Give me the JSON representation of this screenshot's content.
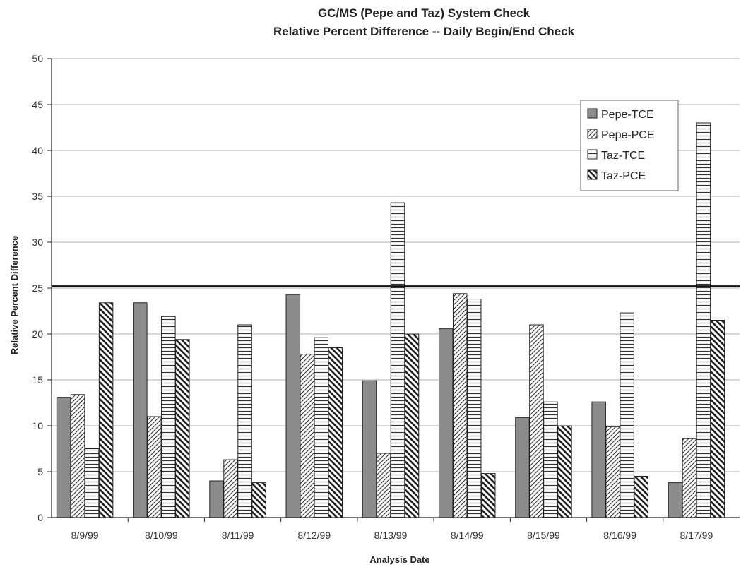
{
  "chart_data": {
    "type": "bar",
    "title": "GC/MS (Pepe and Taz) System Check",
    "subtitle": "Relative Percent Difference -- Daily Begin/End Check",
    "xlabel": "Analysis Date",
    "ylabel": "Relative Percent Difference",
    "ylim": [
      0,
      50
    ],
    "yticks": [
      0,
      5,
      10,
      15,
      20,
      25,
      30,
      35,
      40,
      45,
      50
    ],
    "grid": true,
    "legend_position": "top-right",
    "categories": [
      "8/9/99",
      "8/10/99",
      "8/11/99",
      "8/12/99",
      "8/13/99",
      "8/14/99",
      "8/15/99",
      "8/16/99",
      "8/17/99"
    ],
    "series": [
      {
        "name": "Pepe-TCE",
        "pattern": "solid",
        "values": [
          13.1,
          23.4,
          4.0,
          24.3,
          14.9,
          20.6,
          10.9,
          12.6,
          3.8
        ]
      },
      {
        "name": "Pepe-PCE",
        "pattern": "diagonal-up",
        "values": [
          13.4,
          11.0,
          6.3,
          17.8,
          7.0,
          24.4,
          21.0,
          9.9,
          8.6
        ]
      },
      {
        "name": "Taz-TCE",
        "pattern": "horizontal",
        "values": [
          7.5,
          21.9,
          21.0,
          19.6,
          34.3,
          23.8,
          12.6,
          22.3,
          43.0
        ]
      },
      {
        "name": "Taz-PCE",
        "pattern": "diagonal-down",
        "values": [
          23.4,
          19.4,
          3.8,
          18.5,
          20.0,
          4.8,
          10.0,
          4.5,
          21.5
        ]
      }
    ],
    "reference_line": {
      "value": 25.2
    },
    "colors": {
      "solid_fill": "#8c8c8c",
      "hatch_stroke": "#333333",
      "bar_outline": "#222222",
      "grid": "#b0b0b0"
    }
  }
}
